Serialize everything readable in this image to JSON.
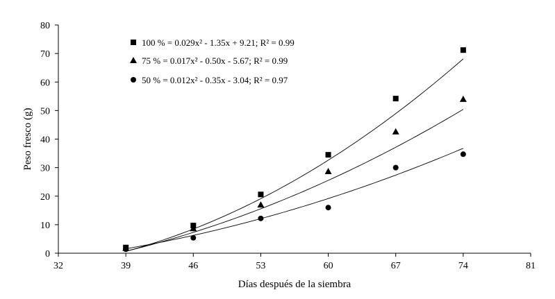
{
  "chart_data": {
    "type": "scatter",
    "title": "",
    "xlabel": "Días después de la siembra",
    "ylabel": "Peso fresco (g)",
    "xlim": [
      32,
      81
    ],
    "ylim": [
      0,
      80
    ],
    "x_ticks": [
      32,
      39,
      46,
      53,
      60,
      67,
      74,
      81
    ],
    "y_ticks": [
      0,
      10,
      20,
      30,
      40,
      50,
      60,
      70,
      80
    ],
    "grid": false,
    "legend_position": "top-left",
    "series": [
      {
        "name": "100 %",
        "marker": "square",
        "x": [
          39,
          46,
          53,
          60,
          67,
          74
        ],
        "y": [
          2.0,
          9.7,
          20.6,
          34.5,
          54.2,
          71.2
        ],
        "fit": {
          "a": 0.029,
          "b": -1.35,
          "c": 9.21
        },
        "equation": "100 % = 0.029x² - 1.35x + 9.21; R² = 0.99"
      },
      {
        "name": "75 %",
        "marker": "triangle",
        "x": [
          39,
          46,
          53,
          60,
          67,
          74
        ],
        "y": [
          1.8,
          8.7,
          17.0,
          28.7,
          42.6,
          54.0
        ],
        "fit": {
          "a": 0.017,
          "b": -0.5,
          "c": -5.67
        },
        "equation": "75 % = 0.017x² - 0.50x - 5.67; R² = 0.99"
      },
      {
        "name": "50 %",
        "marker": "circle",
        "x": [
          39,
          46,
          53,
          60,
          67,
          74
        ],
        "y": [
          1.4,
          5.4,
          12.2,
          16.0,
          30.0,
          34.7
        ],
        "fit": {
          "a": 0.012,
          "b": -0.35,
          "c": -3.04
        },
        "equation": "50 % = 0.012x² - 0.35x - 3.04; R² = 0.97"
      }
    ]
  }
}
